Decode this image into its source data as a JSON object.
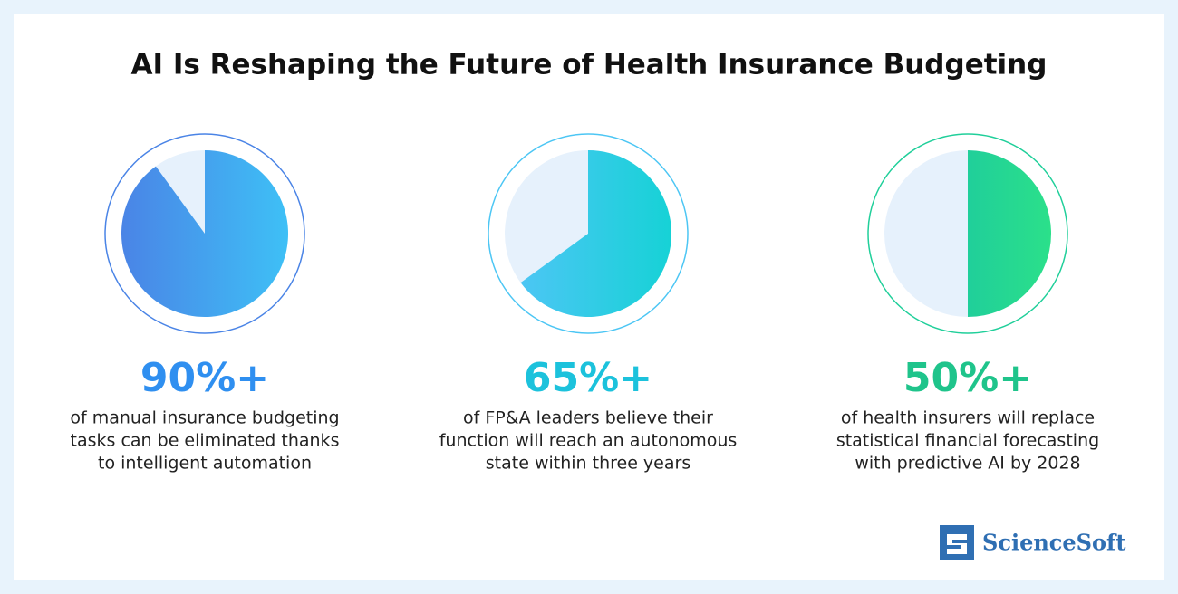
{
  "title": "AI Is Reshaping the Future of Health Insurance Budgeting",
  "brand": "ScienceSoft",
  "chart_data": [
    {
      "type": "pie",
      "values": [
        90
      ],
      "value_labels": [
        "90%+"
      ],
      "colors": [
        "#4a84e6",
        "#3ec0f6"
      ],
      "label_color": "#2f8ff0",
      "description": [
        "of manual insurance budgeting",
        "tasks can be eliminated thanks",
        "to intelligent automation"
      ]
    },
    {
      "type": "pie",
      "values": [
        65
      ],
      "value_labels": [
        "65%+"
      ],
      "colors": [
        "#4cc6f4",
        "#16d2d6"
      ],
      "label_color": "#1cc2dc",
      "description": [
        "of FP&A leaders believe their",
        "function will reach an autonomous",
        "state within three years"
      ]
    },
    {
      "type": "pie",
      "values": [
        50
      ],
      "value_labels": [
        "50%+"
      ],
      "colors": [
        "#20cf9a",
        "#2be08a"
      ],
      "label_color": "#1fc48b",
      "description": [
        "of health insurers will replace",
        "statistical financial forecasting",
        "with predictive AI by 2028"
      ]
    }
  ]
}
